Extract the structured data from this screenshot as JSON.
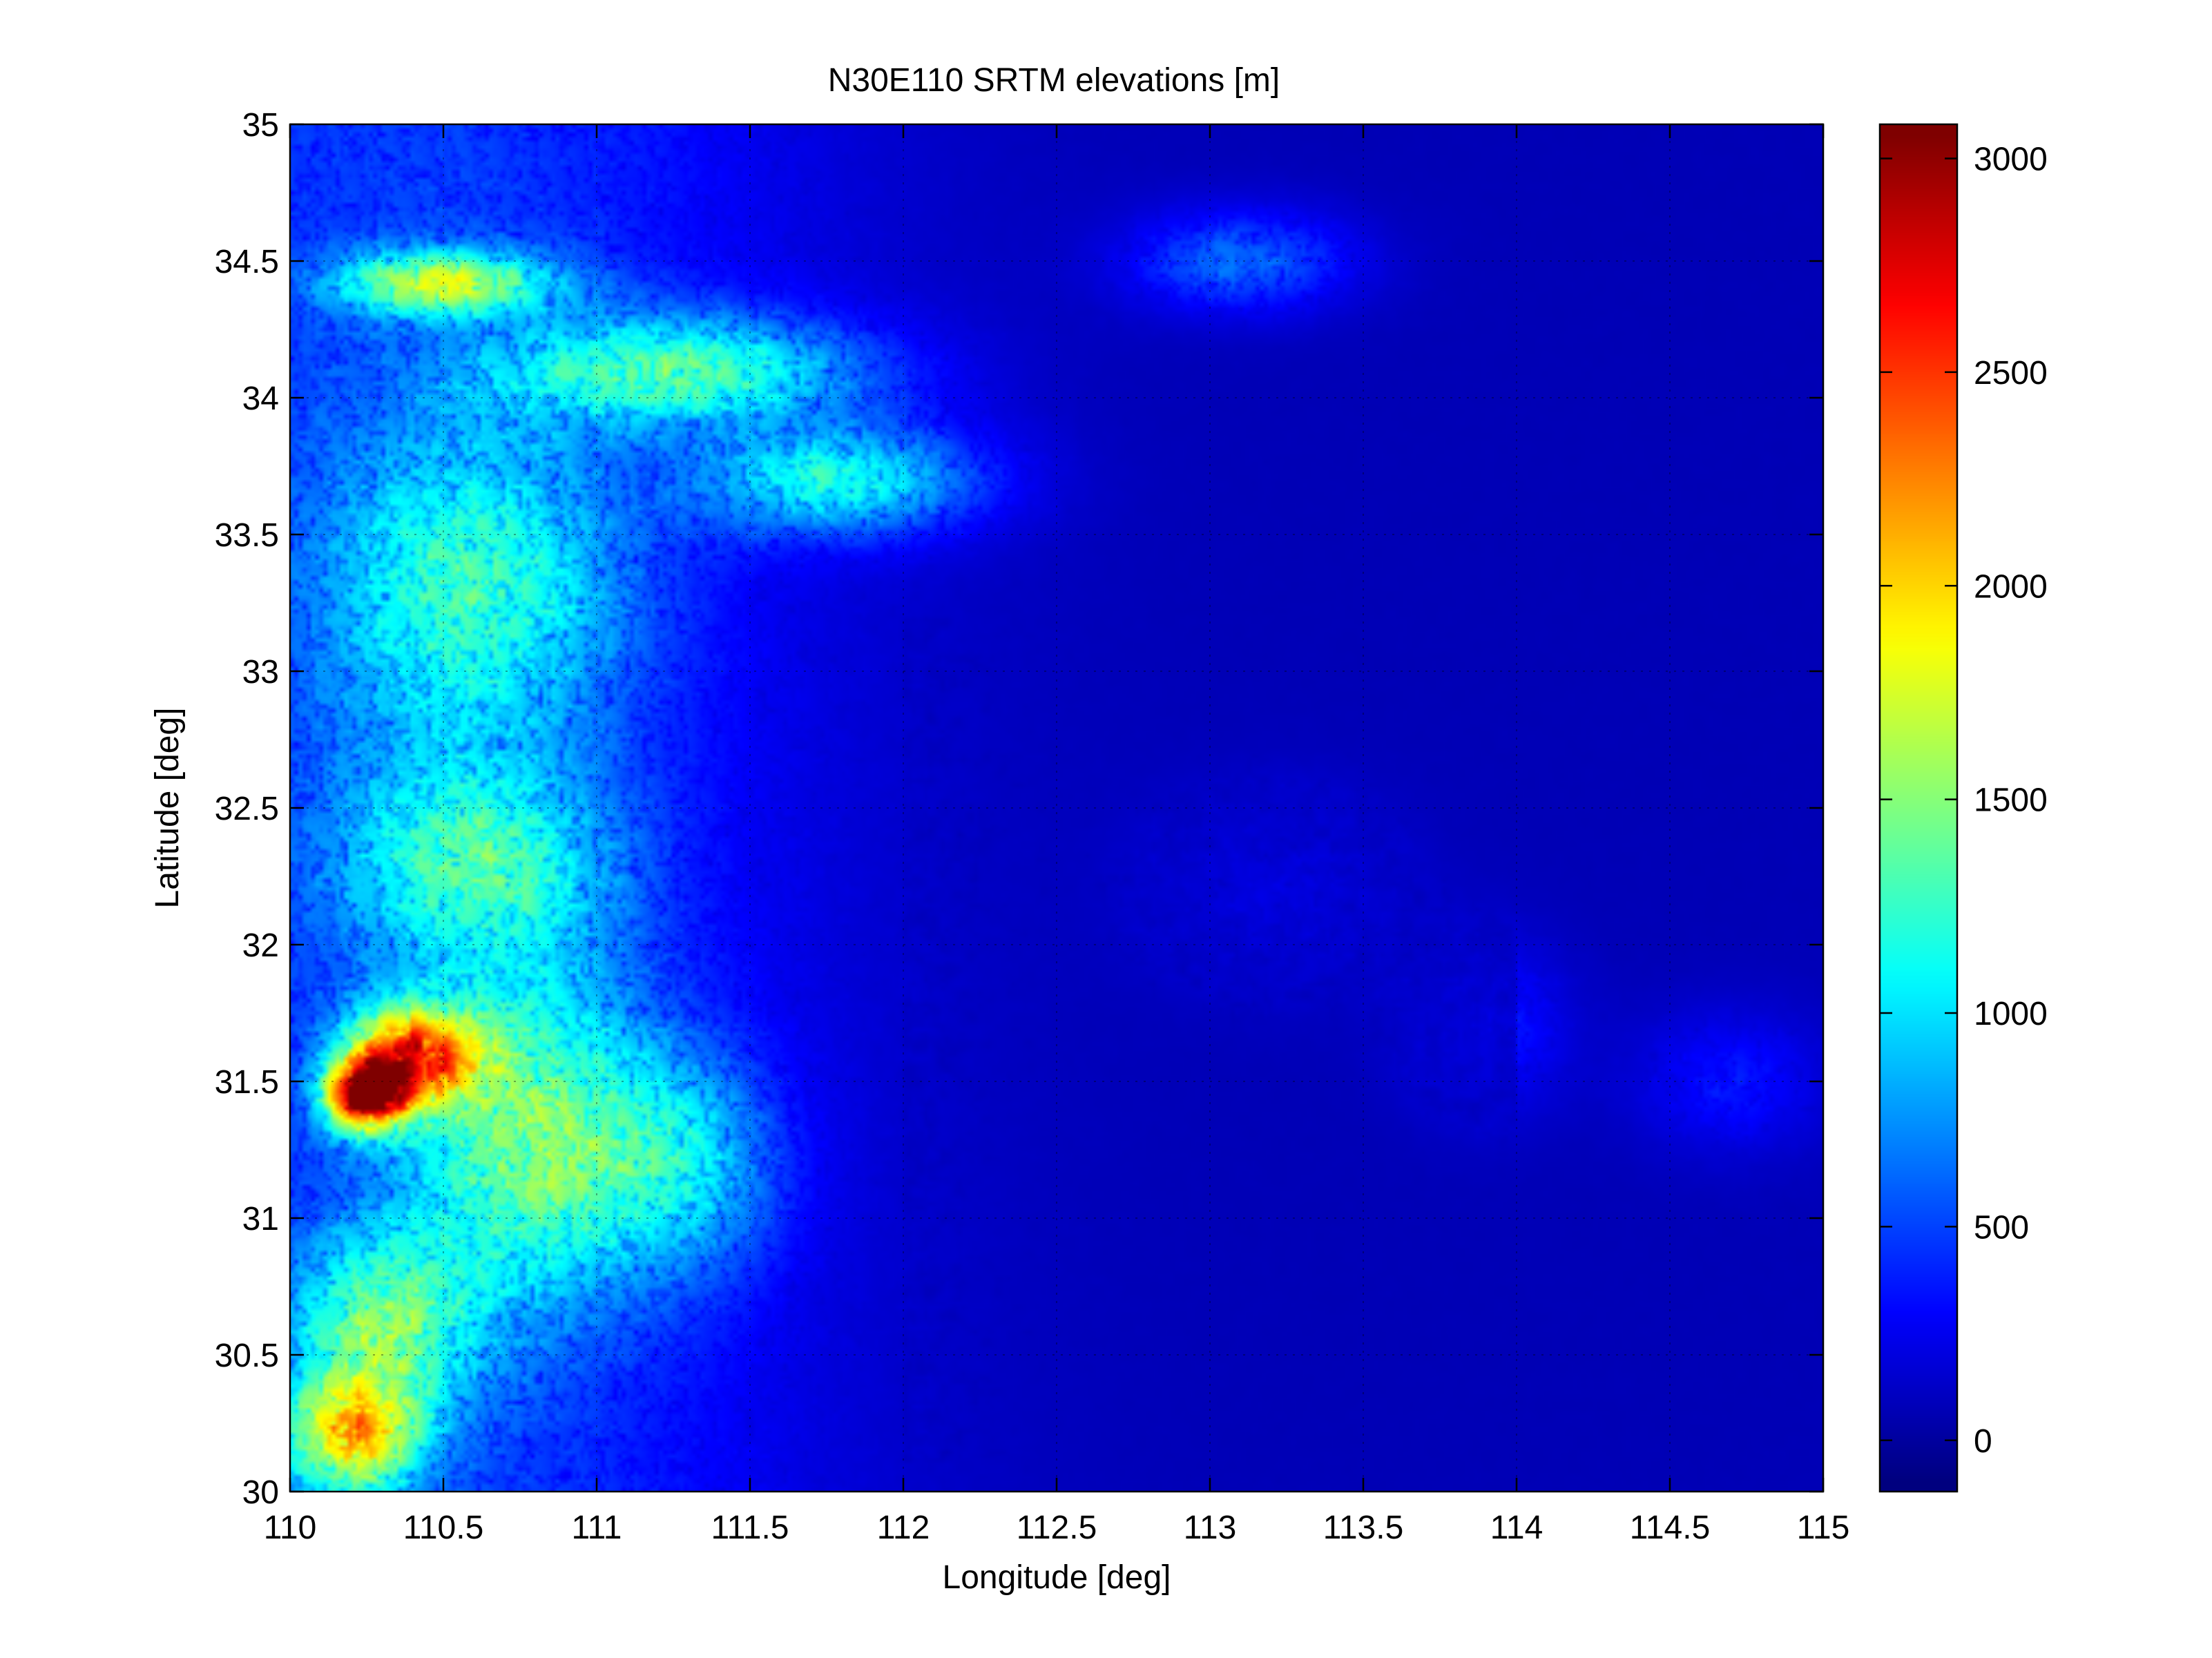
{
  "chart_data": {
    "type": "heatmap",
    "title": "N30E110 SRTM elevations [m]",
    "xlabel": "Longitude [deg]",
    "ylabel": "Latitude [deg]",
    "xlim": [
      110,
      115
    ],
    "ylim": [
      30,
      35
    ],
    "x_ticks": [
      110,
      110.5,
      111,
      111.5,
      112,
      112.5,
      113,
      113.5,
      114,
      114.5,
      115
    ],
    "x_tick_labels": [
      "110",
      "110.5",
      "111",
      "111.5",
      "112",
      "112.5",
      "113",
      "113.5",
      "114",
      "114.5",
      "115"
    ],
    "y_ticks": [
      30,
      30.5,
      31,
      31.5,
      32,
      32.5,
      33,
      33.5,
      34,
      34.5,
      35
    ],
    "y_tick_labels": [
      "30",
      "30.5",
      "31",
      "31.5",
      "32",
      "32.5",
      "33",
      "33.5",
      "34",
      "34.5",
      "35"
    ],
    "grid": true,
    "colormap": "jet",
    "colorbar": {
      "range": [
        -120,
        3080
      ],
      "ticks": [
        0,
        500,
        1000,
        1500,
        2000,
        2500,
        3000
      ],
      "tick_labels": [
        "0",
        "500",
        "1000",
        "1500",
        "2000",
        "2500",
        "3000"
      ],
      "placement": "right"
    },
    "elevation_features": [
      {
        "lon": 110.25,
        "lat": 31.45,
        "elev": 2900,
        "sx": 0.13,
        "sy": 0.13
      },
      {
        "lon": 110.4,
        "lat": 31.6,
        "elev": 2200,
        "sx": 0.22,
        "sy": 0.18
      },
      {
        "lon": 110.2,
        "lat": 30.2,
        "elev": 1700,
        "sx": 0.22,
        "sy": 0.22
      },
      {
        "lon": 110.5,
        "lat": 34.42,
        "elev": 1500,
        "sx": 0.35,
        "sy": 0.12
      },
      {
        "lon": 111.3,
        "lat": 34.1,
        "elev": 1300,
        "sx": 0.6,
        "sy": 0.2
      },
      {
        "lon": 111.8,
        "lat": 33.7,
        "elev": 1200,
        "sx": 0.45,
        "sy": 0.2
      },
      {
        "lon": 110.6,
        "lat": 33.3,
        "elev": 1000,
        "sx": 0.5,
        "sy": 0.6
      },
      {
        "lon": 110.6,
        "lat": 32.3,
        "elev": 1000,
        "sx": 0.45,
        "sy": 0.35
      },
      {
        "lon": 110.8,
        "lat": 31.3,
        "elev": 1300,
        "sx": 0.4,
        "sy": 0.6
      },
      {
        "lon": 111.3,
        "lat": 31.2,
        "elev": 800,
        "sx": 0.3,
        "sy": 0.4
      },
      {
        "lon": 110.3,
        "lat": 30.6,
        "elev": 1200,
        "sx": 0.3,
        "sy": 0.35
      },
      {
        "lon": 113.1,
        "lat": 34.5,
        "elev": 700,
        "sx": 0.35,
        "sy": 0.18
      },
      {
        "lon": 113.2,
        "lat": 32.2,
        "elev": 450,
        "sx": 0.35,
        "sy": 0.3
      },
      {
        "lon": 113.9,
        "lat": 31.7,
        "elev": 400,
        "sx": 0.25,
        "sy": 0.3
      },
      {
        "lon": 114.7,
        "lat": 31.5,
        "elev": 350,
        "sx": 0.3,
        "sy": 0.25
      }
    ]
  }
}
